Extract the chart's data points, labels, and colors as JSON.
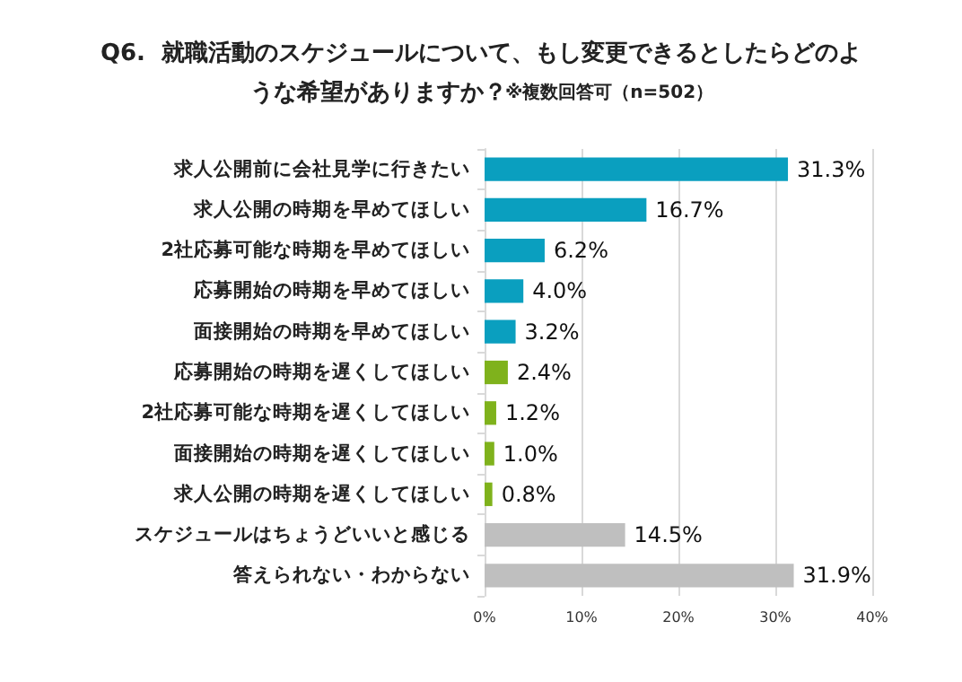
{
  "chart_data": {
    "type": "bar",
    "orientation": "horizontal",
    "title": "Q6.  就職活動のスケジュールについて、もし変更できるとしたらどのような希望がありますか？",
    "subtitle": "※複数回答可（n=502）",
    "categories": [
      "求人公開前に会社見学に行きたい",
      "求人公開の時期を早めてほしい",
      "2社応募可能な時期を早めてほしい",
      "応募開始の時期を早めてほしい",
      "面接開始の時期を早めてほしい",
      "応募開始の時期を遅くしてほしい",
      "2社応募可能な時期を遅くしてほしい",
      "面接開始の時期を遅くしてほしい",
      "求人公開の時期を遅くしてほしい",
      "スケジュールはちょうどいいと感じる",
      "答えられない・わからない"
    ],
    "values": [
      31.3,
      16.7,
      6.2,
      4.0,
      3.2,
      2.4,
      1.2,
      1.0,
      0.8,
      14.5,
      31.9
    ],
    "colors": [
      "#0a9fbf",
      "#0a9fbf",
      "#0a9fbf",
      "#0a9fbf",
      "#0a9fbf",
      "#7fb21c",
      "#7fb21c",
      "#7fb21c",
      "#7fb21c",
      "#bfbfbf",
      "#bfbfbf"
    ],
    "value_labels": [
      "31.3%",
      "16.7%",
      "6.2%",
      "4.0%",
      "3.2%",
      "2.4%",
      "1.2%",
      "1.0%",
      "0.8%",
      "14.5%",
      "31.9%"
    ],
    "xlim": [
      0,
      40
    ],
    "xticks": [
      {
        "value": 0,
        "label": "0%"
      },
      {
        "value": 10,
        "label": "10%"
      },
      {
        "value": 20,
        "label": "20%"
      },
      {
        "value": 30,
        "label": "30%"
      },
      {
        "value": 40,
        "label": "40%"
      }
    ],
    "grid": "x"
  }
}
